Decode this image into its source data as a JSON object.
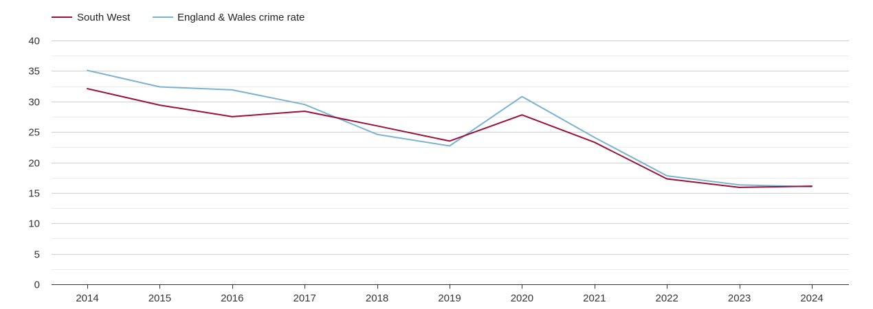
{
  "chart_data": {
    "type": "line",
    "title": "",
    "xlabel": "",
    "ylabel": "",
    "x": [
      "2014",
      "2015",
      "2016",
      "2017",
      "2018",
      "2019",
      "2020",
      "2021",
      "2022",
      "2023",
      "2024"
    ],
    "ylim": [
      0,
      40
    ],
    "yticks": [
      0,
      5,
      10,
      15,
      20,
      25,
      30,
      35,
      40
    ],
    "grid": true,
    "legend_position": "top-left",
    "series": [
      {
        "name": "South West",
        "color": "#9b0f37",
        "values": [
          32.1,
          29.4,
          27.5,
          28.4,
          26.0,
          23.5,
          27.8,
          23.3,
          17.3,
          15.9,
          16.1
        ]
      },
      {
        "name": "England & Wales crime rate",
        "color": "#7ab2d2",
        "values": [
          35.1,
          32.4,
          31.9,
          29.5,
          24.6,
          22.7,
          30.8,
          24.1,
          17.8,
          16.3,
          16.0
        ]
      }
    ]
  }
}
